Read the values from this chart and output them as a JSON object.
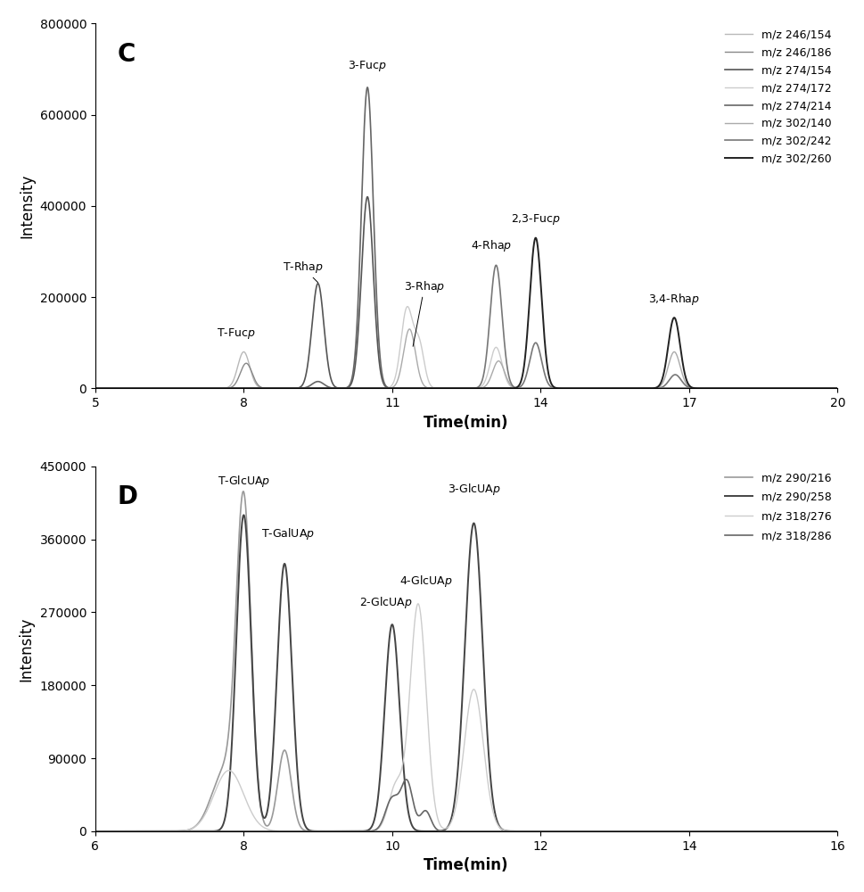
{
  "panel_C": {
    "title": "C",
    "xlabel": "Time(min)",
    "ylabel": "Intensity",
    "xlim": [
      5,
      20
    ],
    "ylim": [
      0,
      800000
    ],
    "yticks": [
      0,
      200000,
      400000,
      600000,
      800000
    ],
    "xticks": [
      5,
      8,
      11,
      14,
      17,
      20
    ],
    "legend_labels": [
      "m/z 246/154",
      "m/z 246/186",
      "m/z 274/154",
      "m/z 274/172",
      "m/z 274/214",
      "m/z 302/140",
      "m/z 302/242",
      "m/z 302/260"
    ],
    "colors": [
      "#b8b8b8",
      "#888888",
      "#555555",
      "#cccccc",
      "#666666",
      "#aaaaaa",
      "#777777",
      "#222222"
    ]
  },
  "panel_D": {
    "title": "D",
    "xlabel": "Time(min)",
    "ylabel": "Intensity",
    "xlim": [
      6,
      16
    ],
    "ylim": [
      0,
      450000
    ],
    "yticks": [
      0,
      90000,
      180000,
      270000,
      360000,
      450000
    ],
    "xticks": [
      6,
      8,
      10,
      12,
      14,
      16
    ],
    "legend_labels": [
      "m/z 290/216",
      "m/z 290/258",
      "m/z 318/276",
      "m/z 318/286"
    ],
    "colors": [
      "#999999",
      "#444444",
      "#cccccc",
      "#666666"
    ]
  }
}
